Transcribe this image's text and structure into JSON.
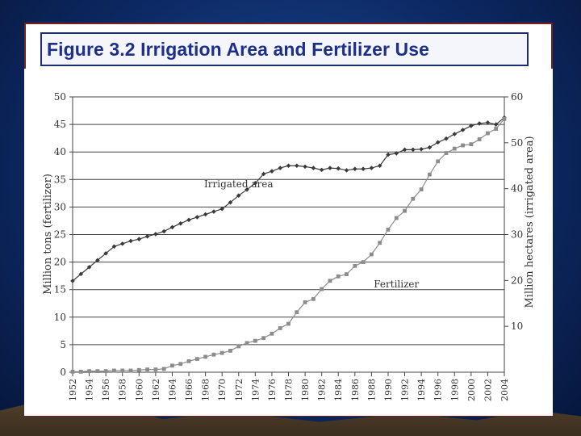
{
  "slide": {
    "title": "Figure 3.2 Irrigation Area and Fertilizer Use"
  },
  "colors": {
    "title_text": "#1d2f8c",
    "irrigation": "#3a3a3a",
    "fertilizer": "#8c8c8c",
    "grid": "#444444"
  },
  "chart_data": {
    "type": "line",
    "title": "Figure 3.2 Irrigation Area and Fertilizer Use",
    "xlabel": "",
    "ylabel_left": "Million tons (fertilizer)",
    "ylabel_right": "Million hectares (irrigated area)",
    "ylim_left": [
      0,
      50
    ],
    "ylim_right": [
      0,
      60
    ],
    "yticks_left": [
      0,
      5,
      10,
      15,
      20,
      25,
      30,
      35,
      40,
      45,
      50
    ],
    "yticks_right": [
      10,
      20,
      30,
      40,
      50,
      60
    ],
    "xlim": [
      1952,
      2004
    ],
    "xticks": [
      1952,
      1954,
      1956,
      1958,
      1960,
      1962,
      1964,
      1966,
      1968,
      1970,
      1972,
      1974,
      1976,
      1978,
      1980,
      1982,
      1984,
      1986,
      1988,
      1990,
      1992,
      1994,
      1996,
      1998,
      2000,
      2002,
      2004
    ],
    "xtick_labels": [
      "1952",
      "1954",
      "1956",
      "1958",
      "1960",
      "1962",
      "1964",
      "1966",
      "1968",
      "1970",
      "1972",
      "1974",
      "1976",
      "1978",
      "1980",
      "1982",
      "1984",
      "1986",
      "1988",
      "1990",
      "1992",
      "1994",
      "1996",
      "1998",
      "2000",
      "2002",
      "2004"
    ],
    "grid": true,
    "series": [
      {
        "name": "Irrigated area",
        "axis": "right",
        "x": [
          1952,
          1953,
          1954,
          1955,
          1956,
          1957,
          1958,
          1959,
          1960,
          1961,
          1962,
          1963,
          1964,
          1965,
          1966,
          1967,
          1968,
          1969,
          1970,
          1971,
          1972,
          1973,
          1974,
          1975,
          1976,
          1977,
          1978,
          1979,
          1980,
          1981,
          1982,
          1983,
          1984,
          1985,
          1986,
          1987,
          1988,
          1989,
          1990,
          1991,
          1992,
          1993,
          1994,
          1995,
          1996,
          1997,
          1998,
          1999,
          2000,
          2001,
          2002,
          2003,
          2004
        ],
        "values": [
          19.9,
          21.4,
          22.9,
          24.4,
          25.9,
          27.4,
          28.0,
          28.6,
          29.0,
          29.6,
          30.1,
          30.7,
          31.6,
          32.4,
          33.2,
          33.8,
          34.4,
          35.0,
          35.6,
          37.0,
          38.5,
          39.8,
          41.2,
          43.2,
          43.8,
          44.5,
          45.0,
          45.0,
          44.8,
          44.5,
          44.1,
          44.5,
          44.4,
          44.0,
          44.3,
          44.3,
          44.5,
          45.0,
          47.4,
          47.7,
          48.5,
          48.5,
          48.6,
          49.0,
          50.1,
          50.9,
          51.9,
          52.8,
          53.7,
          54.2,
          54.4,
          54.0,
          55.5
        ],
        "label_text": "Irrigated area",
        "label_at": [
          1972,
          40.3
        ]
      },
      {
        "name": "Fertilizer",
        "axis": "left",
        "x": [
          1952,
          1953,
          1954,
          1955,
          1956,
          1957,
          1958,
          1959,
          1960,
          1961,
          1962,
          1963,
          1964,
          1965,
          1966,
          1967,
          1968,
          1969,
          1970,
          1971,
          1972,
          1973,
          1974,
          1975,
          1976,
          1977,
          1978,
          1979,
          1980,
          1981,
          1982,
          1983,
          1984,
          1985,
          1986,
          1987,
          1988,
          1989,
          1990,
          1991,
          1992,
          1993,
          1994,
          1995,
          1996,
          1997,
          1998,
          1999,
          2000,
          2001,
          2002,
          2003,
          2004
        ],
        "values": [
          0.1,
          0.1,
          0.2,
          0.2,
          0.2,
          0.3,
          0.3,
          0.3,
          0.4,
          0.5,
          0.5,
          0.6,
          1.2,
          1.5,
          2.0,
          2.4,
          2.8,
          3.2,
          3.5,
          3.9,
          4.7,
          5.3,
          5.7,
          6.2,
          7.0,
          8.0,
          8.8,
          10.9,
          12.7,
          13.3,
          15.1,
          16.6,
          17.4,
          17.8,
          19.3,
          20.0,
          21.4,
          23.5,
          25.9,
          28.0,
          29.3,
          31.5,
          33.2,
          35.9,
          38.3,
          39.8,
          40.6,
          41.2,
          41.4,
          42.3,
          43.4,
          44.2,
          46.0
        ],
        "label_text": "Fertilizer",
        "label_at": [
          1991,
          15.4
        ]
      }
    ]
  }
}
